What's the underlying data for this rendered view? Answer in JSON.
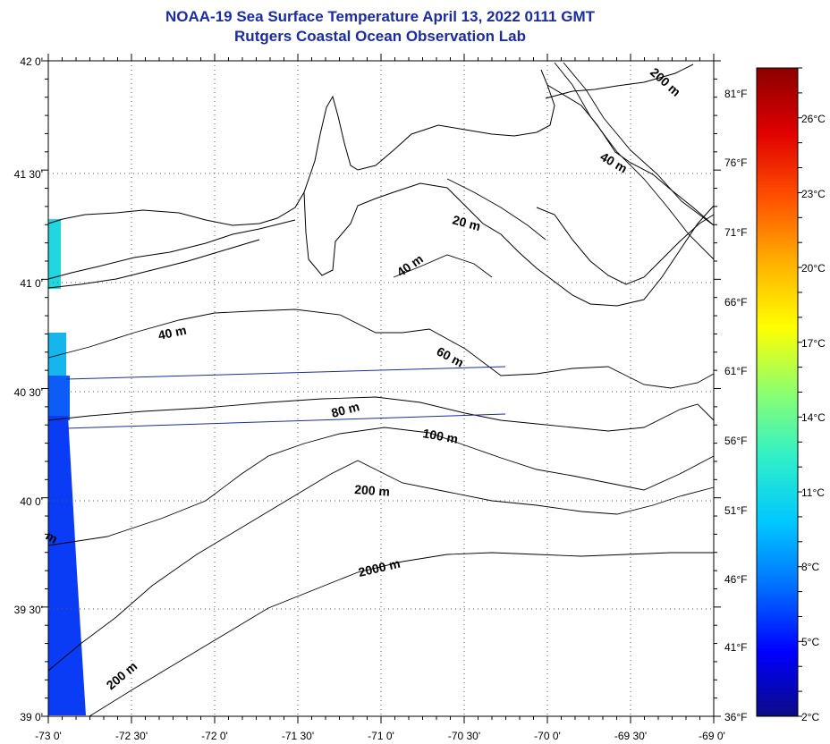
{
  "title": {
    "line1": "NOAA-19 Sea Surface Temperature April 13, 2022 0111 GMT",
    "line2": "Rutgers Coastal Ocean Observation Lab"
  },
  "latitude_labels": [
    "42 0'",
    "41 30'",
    "41 0'",
    "40 30'",
    "40 0'",
    "39 30'",
    "39 0'"
  ],
  "longitude_labels": [
    "-73 0'",
    "-72 30'",
    "-72 0'",
    "-71 30'",
    "-71 0'",
    "-70 30'",
    "-70 0'",
    "-69 30'",
    "-69 0'"
  ],
  "fahrenheit_labels": [
    "81°F",
    "76°F",
    "71°F",
    "66°F",
    "61°F",
    "56°F",
    "51°F",
    "46°F",
    "41°F",
    "36°F"
  ],
  "celsius_labels": [
    "26°C",
    "23°C",
    "20°C",
    "17°C",
    "14°C",
    "11°C",
    "8°C",
    "5°C",
    "2°C"
  ],
  "colorbar": {
    "min_c": 2,
    "max_c": 28,
    "colors": [
      "#0b0b86",
      "#0000ff",
      "#0070ff",
      "#00c8ff",
      "#30f0c8",
      "#8cff6e",
      "#ffff00",
      "#ffb000",
      "#ff5000",
      "#e00000",
      "#8b0000"
    ]
  },
  "isobath_labels": [
    "200 m",
    "40 m",
    "20 m",
    "40 m",
    "40 m",
    "60 m",
    "80 m",
    "100 m",
    "200 m",
    "2000 m",
    "200 m",
    "m"
  ],
  "colors": {
    "title": "#1a2ca3",
    "coastline": "#000000",
    "track_line": "#1a2ca3",
    "grid": "#555555"
  }
}
